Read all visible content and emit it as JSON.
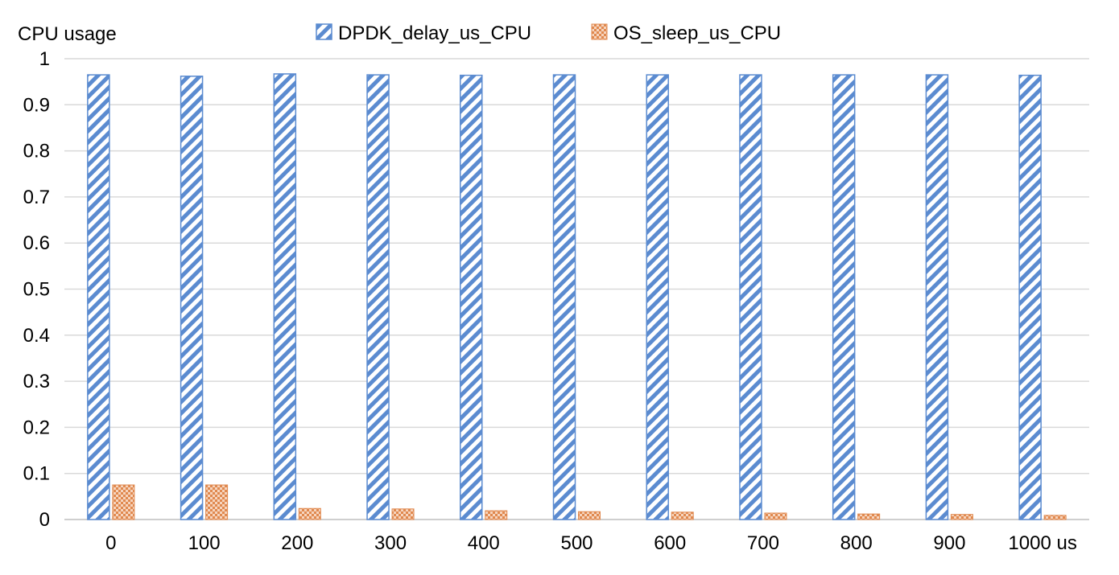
{
  "chart_data": {
    "type": "bar",
    "ylabel": "CPU usage",
    "xlabel": "",
    "ylim": [
      0,
      1
    ],
    "yticks": [
      "0",
      "0.1",
      "0.2",
      "0.3",
      "0.4",
      "0.5",
      "0.6",
      "0.7",
      "0.8",
      "0.9",
      "1"
    ],
    "categories": [
      "0",
      "100",
      "200",
      "300",
      "400",
      "500",
      "600",
      "700",
      "800",
      "900",
      "1000 us"
    ],
    "series": [
      {
        "name": "DPDK_delay_us_CPU",
        "color": "#5b8bd0",
        "pattern": "diagonal-stripes",
        "values": [
          0.965,
          0.962,
          0.967,
          0.965,
          0.964,
          0.965,
          0.965,
          0.965,
          0.965,
          0.965,
          0.964
        ]
      },
      {
        "name": "OS_sleep_us_CPU",
        "color": "#e0894f",
        "pattern": "crosshatch",
        "values": [
          0.075,
          0.075,
          0.024,
          0.023,
          0.019,
          0.017,
          0.016,
          0.014,
          0.012,
          0.011,
          0.009
        ]
      }
    ],
    "legend": {
      "position": "top-center"
    },
    "grid": true
  }
}
